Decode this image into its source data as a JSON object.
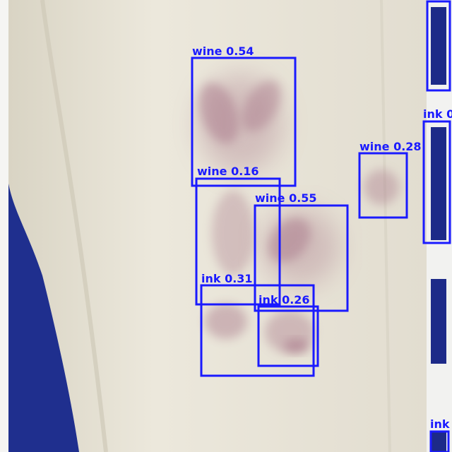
{
  "scene": {
    "subject": "stained white cloth with object-detection boxes",
    "colors": {
      "box": "#1a1aff",
      "cloth": "#ece8dc",
      "backdrop": "#1f2f8e",
      "stain": "#a9788a"
    }
  },
  "detections": [
    {
      "id": "d1",
      "label": "wine 0.54"
    },
    {
      "id": "d2",
      "label": "wine 0.16"
    },
    {
      "id": "d3",
      "label": "wine 0.55"
    },
    {
      "id": "d4",
      "label": "wine 0.28"
    },
    {
      "id": "d5",
      "label": "ink 0.31"
    },
    {
      "id": "d6",
      "label": "ink 0.26"
    },
    {
      "id": "d7",
      "label": "ink 0"
    },
    {
      "id": "d8",
      "label": "ink"
    },
    {
      "id": "d9",
      "label": ""
    }
  ]
}
